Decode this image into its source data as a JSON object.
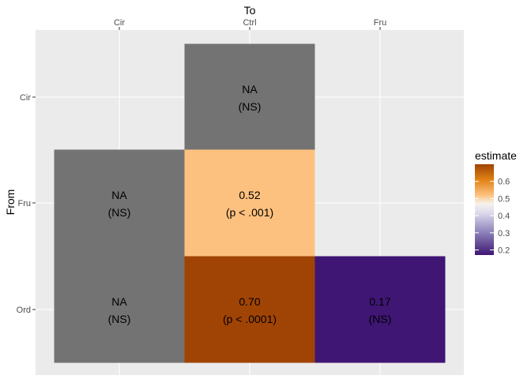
{
  "chart_data": {
    "type": "heatmap",
    "xlabel": "To",
    "ylabel": "From",
    "x_categories": [
      "Cir",
      "Ctrl",
      "Fru"
    ],
    "y_categories": [
      "Cir",
      "Fru",
      "Ord"
    ],
    "x_axis_position": "top",
    "grid": true,
    "na_color": "#737373",
    "cells": [
      {
        "from": "Cir",
        "to": "Ctrl",
        "value": null,
        "line1": "NA",
        "line2": "(NS)"
      },
      {
        "from": "Fru",
        "to": "Cir",
        "value": null,
        "line1": "NA",
        "line2": "(NS)"
      },
      {
        "from": "Fru",
        "to": "Ctrl",
        "value": 0.52,
        "line1": "0.52",
        "line2": "(p < .001)"
      },
      {
        "from": "Ord",
        "to": "Cir",
        "value": null,
        "line1": "NA",
        "line2": "(NS)"
      },
      {
        "from": "Ord",
        "to": "Ctrl",
        "value": 0.7,
        "line1": "0.70",
        "line2": "(p < .0001)"
      },
      {
        "from": "Ord",
        "to": "Fru",
        "value": 0.17,
        "line1": "0.17",
        "line2": "(NS)"
      }
    ],
    "legend": {
      "title": "estimate",
      "placement": "right",
      "range": [
        0.17,
        0.7
      ],
      "ticks": [
        0.2,
        0.3,
        0.4,
        0.5,
        0.6
      ],
      "tick_labels": [
        "0.2",
        "0.3",
        "0.4",
        "0.5",
        "0.6"
      ],
      "color_stops": [
        {
          "value": 0.17,
          "color": "#3f1673"
        },
        {
          "value": 0.3,
          "color": "#8b80b8"
        },
        {
          "value": 0.42,
          "color": "#e0dcee"
        },
        {
          "value": 0.47,
          "color": "#f5f2ec"
        },
        {
          "value": 0.52,
          "color": "#fdc17f"
        },
        {
          "value": 0.61,
          "color": "#e08214"
        },
        {
          "value": 0.7,
          "color": "#a04405"
        }
      ]
    }
  }
}
